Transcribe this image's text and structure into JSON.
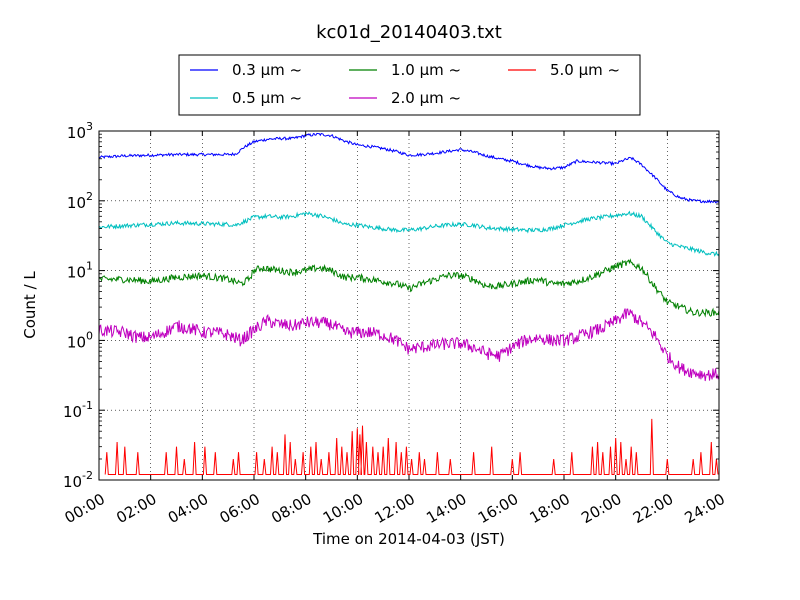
{
  "chart_data": {
    "type": "line",
    "title": "kc01d_20140403.txt",
    "xlabel": "Time on 2014-04-03 (JST)",
    "ylabel": "Count / L",
    "yscale": "log",
    "xlim": [
      0,
      24
    ],
    "ylim": [
      0.01,
      1000
    ],
    "grid": true,
    "legend_position": "top-center",
    "x_ticks": [
      "00:00",
      "02:00",
      "04:00",
      "06:00",
      "08:00",
      "10:00",
      "12:00",
      "14:00",
      "16:00",
      "18:00",
      "20:00",
      "22:00",
      "24:00"
    ],
    "y_ticks": [
      {
        "value": 1000,
        "base": "10",
        "exp": "3"
      },
      {
        "value": 100,
        "base": "10",
        "exp": "2"
      },
      {
        "value": 10,
        "base": "10",
        "exp": "1"
      },
      {
        "value": 1,
        "base": "10",
        "exp": "0"
      },
      {
        "value": 0.1,
        "base": "10",
        "exp": "-1"
      },
      {
        "value": 0.01,
        "base": "10",
        "exp": "-2"
      }
    ],
    "series": [
      {
        "name": "0.3 μm ~",
        "color": "#0000ff",
        "noise": 0.02,
        "x": [
          0,
          1,
          2,
          3,
          4,
          5,
          5.3,
          5.6,
          6,
          6.5,
          7,
          7.5,
          8,
          8.5,
          9,
          9.5,
          10,
          10.5,
          11,
          11.5,
          12,
          12.5,
          13,
          13.5,
          14,
          14.5,
          15,
          15.5,
          16,
          16.5,
          17,
          17.5,
          18,
          18.5,
          19,
          19.5,
          20,
          20.3,
          20.6,
          21,
          21.5,
          22,
          22.5,
          23,
          23.5,
          24
        ],
        "y": [
          420,
          440,
          450,
          460,
          460,
          460,
          470,
          580,
          700,
          760,
          780,
          780,
          860,
          900,
          860,
          720,
          630,
          600,
          560,
          510,
          450,
          460,
          480,
          510,
          540,
          500,
          440,
          400,
          370,
          330,
          300,
          290,
          300,
          370,
          360,
          350,
          340,
          380,
          410,
          330,
          220,
          140,
          110,
          100,
          98,
          98
        ]
      },
      {
        "name": "0.5 μm ~",
        "color": "#00bfbf",
        "noise": 0.03,
        "x": [
          0,
          1,
          2,
          3,
          4,
          5,
          5.3,
          5.6,
          6,
          6.5,
          7,
          7.5,
          8,
          8.5,
          9,
          9.5,
          10,
          10.5,
          11,
          11.5,
          12,
          12.5,
          13,
          13.5,
          14,
          14.5,
          15,
          15.5,
          16,
          16.5,
          17,
          17.5,
          18,
          18.5,
          19,
          19.5,
          20,
          20.5,
          21,
          21.5,
          22,
          22.5,
          23,
          23.5,
          24
        ],
        "y": [
          42,
          44,
          46,
          48,
          47,
          46,
          45,
          50,
          58,
          60,
          58,
          60,
          66,
          62,
          55,
          46,
          45,
          42,
          40,
          38,
          38,
          40,
          43,
          45,
          46,
          45,
          41,
          40,
          39,
          38,
          38,
          40,
          45,
          50,
          55,
          58,
          62,
          66,
          60,
          38,
          25,
          22,
          20,
          18,
          17
        ]
      },
      {
        "name": "1.0 μm ~",
        "color": "#008000",
        "noise": 0.05,
        "x": [
          0,
          1,
          2,
          3,
          4,
          5,
          5.5,
          5.8,
          6,
          6.3,
          7,
          7.5,
          8,
          8.5,
          9,
          9.5,
          10,
          10.5,
          11,
          11.5,
          12,
          12.5,
          13,
          13.5,
          14,
          14.5,
          15,
          15.5,
          16,
          16.5,
          17,
          17.5,
          18,
          18.5,
          19,
          19.5,
          20,
          20.5,
          21,
          21.5,
          22,
          22.5,
          23,
          23.5,
          24
        ],
        "y": [
          7.5,
          7.5,
          7,
          8,
          8.5,
          7.5,
          6.5,
          7.5,
          10,
          11,
          10,
          9.5,
          10,
          11,
          10,
          8,
          8,
          7.5,
          7,
          6.5,
          5.5,
          6.5,
          7.5,
          8.5,
          8.5,
          7.5,
          6,
          6,
          6.5,
          7,
          7.5,
          6.5,
          6.5,
          7,
          8,
          9.5,
          11.5,
          13,
          11,
          6,
          3.5,
          3,
          2.5,
          2.5,
          2.5
        ]
      },
      {
        "name": "2.0 μm ~",
        "color": "#bf00bf",
        "noise": 0.09,
        "x": [
          0,
          1,
          1.5,
          2,
          2.5,
          3,
          3.5,
          4,
          4.5,
          5,
          5.5,
          6,
          6.5,
          7,
          7.5,
          8,
          8.5,
          9,
          9.5,
          10,
          10.5,
          11,
          11.5,
          12,
          12.5,
          13,
          13.5,
          14,
          14.5,
          15,
          15.5,
          16,
          16.5,
          17,
          17.5,
          18,
          18.5,
          19,
          19.5,
          20,
          20.5,
          21,
          21.5,
          22,
          22.5,
          23,
          23.5,
          24
        ],
        "y": [
          1.4,
          1.3,
          1.1,
          1.1,
          1.3,
          1.6,
          1.5,
          1.3,
          1.3,
          1.2,
          1,
          1.4,
          1.9,
          1.7,
          1.6,
          1.8,
          1.8,
          1.7,
          1.3,
          1.3,
          1.3,
          1.2,
          1.0,
          0.75,
          0.8,
          0.85,
          0.9,
          0.9,
          0.8,
          0.65,
          0.6,
          0.8,
          1.0,
          1.1,
          1.0,
          1.0,
          1.1,
          1.3,
          1.5,
          1.9,
          2.5,
          1.8,
          1.2,
          0.6,
          0.4,
          0.35,
          0.32,
          0.33
        ]
      },
      {
        "name": "5.0 μm ~",
        "color": "#ff0000",
        "spikes": [
          [
            0.3,
            0.025
          ],
          [
            0.7,
            0.035
          ],
          [
            1.0,
            0.03
          ],
          [
            1.5,
            0.025
          ],
          [
            2.6,
            0.025
          ],
          [
            3.0,
            0.03
          ],
          [
            3.3,
            0.02
          ],
          [
            3.7,
            0.035
          ],
          [
            4.1,
            0.03
          ],
          [
            4.5,
            0.025
          ],
          [
            5.2,
            0.02
          ],
          [
            5.4,
            0.025
          ],
          [
            6.1,
            0.025
          ],
          [
            6.4,
            0.02
          ],
          [
            6.7,
            0.03
          ],
          [
            6.9,
            0.025
          ],
          [
            7.2,
            0.045
          ],
          [
            7.4,
            0.035
          ],
          [
            7.6,
            0.02
          ],
          [
            7.9,
            0.025
          ],
          [
            8.2,
            0.03
          ],
          [
            8.4,
            0.035
          ],
          [
            8.6,
            0.02
          ],
          [
            8.9,
            0.025
          ],
          [
            9.2,
            0.04
          ],
          [
            9.4,
            0.03
          ],
          [
            9.6,
            0.025
          ],
          [
            9.8,
            0.05
          ],
          [
            10.0,
            0.055
          ],
          [
            10.1,
            0.045
          ],
          [
            10.2,
            0.06
          ],
          [
            10.35,
            0.035
          ],
          [
            10.6,
            0.03
          ],
          [
            10.8,
            0.025
          ],
          [
            11.0,
            0.03
          ],
          [
            11.2,
            0.04
          ],
          [
            11.5,
            0.035
          ],
          [
            11.7,
            0.025
          ],
          [
            11.9,
            0.03
          ],
          [
            12.1,
            0.02
          ],
          [
            12.4,
            0.025
          ],
          [
            12.6,
            0.02
          ],
          [
            13.1,
            0.025
          ],
          [
            13.6,
            0.02
          ],
          [
            14.5,
            0.025
          ],
          [
            15.2,
            0.03
          ],
          [
            16.0,
            0.02
          ],
          [
            16.3,
            0.025
          ],
          [
            17.6,
            0.02
          ],
          [
            18.3,
            0.025
          ],
          [
            19.1,
            0.03
          ],
          [
            19.3,
            0.035
          ],
          [
            19.5,
            0.025
          ],
          [
            19.8,
            0.03
          ],
          [
            20.0,
            0.04
          ],
          [
            20.2,
            0.035
          ],
          [
            20.4,
            0.02
          ],
          [
            20.6,
            0.03
          ],
          [
            20.8,
            0.025
          ],
          [
            21.4,
            0.075
          ],
          [
            22.0,
            0.02
          ],
          [
            23.0,
            0.02
          ],
          [
            23.3,
            0.025
          ],
          [
            23.7,
            0.035
          ],
          [
            23.9,
            0.02
          ]
        ]
      }
    ]
  }
}
